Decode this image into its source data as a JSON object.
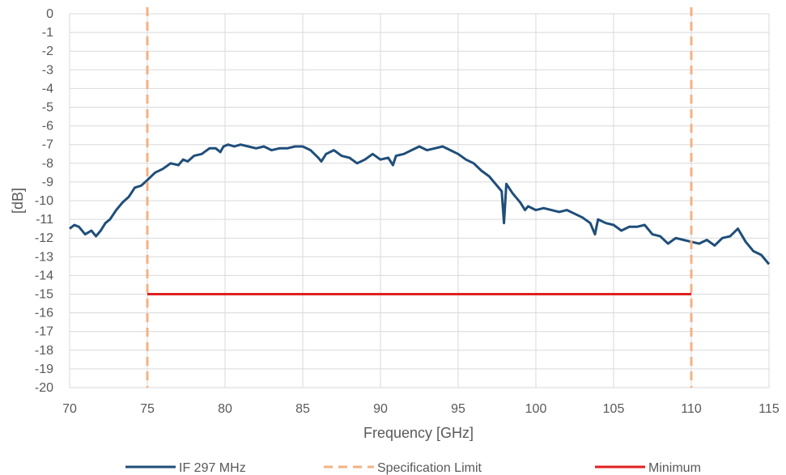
{
  "chart_data": {
    "type": "line",
    "title": "",
    "xlabel": "Frequency [GHz]",
    "ylabel": "[dB]",
    "xlim": [
      70,
      115
    ],
    "ylim": [
      -20,
      0
    ],
    "x_ticks": [
      "70",
      "75",
      "80",
      "85",
      "90",
      "95",
      "100",
      "105",
      "110",
      "115"
    ],
    "y_ticks": [
      "0",
      "-1",
      "-2",
      "-3",
      "-4",
      "-5",
      "-6",
      "-7",
      "-8",
      "-9",
      "-10",
      "-11",
      "-12",
      "-13",
      "-14",
      "-15",
      "-16",
      "-17",
      "-18",
      "-19",
      "-20"
    ],
    "grid": true,
    "legend_position": "bottom",
    "series": [
      {
        "name": "IF 297 MHz",
        "style": "solid",
        "color": "#1f4e79",
        "x": [
          70,
          70.3,
          70.6,
          71,
          71.4,
          71.7,
          72,
          72.3,
          72.6,
          73,
          73.4,
          73.8,
          74.2,
          74.6,
          75,
          75.5,
          76,
          76.5,
          77,
          77.3,
          77.6,
          78,
          78.5,
          79,
          79.4,
          79.7,
          79.9,
          80.2,
          80.6,
          81,
          81.5,
          82,
          82.5,
          83,
          83.5,
          84,
          84.5,
          85,
          85.5,
          86,
          86.2,
          86.5,
          87,
          87.5,
          88,
          88.5,
          89,
          89.5,
          90,
          90.5,
          90.8,
          91,
          91.5,
          92,
          92.5,
          93,
          93.5,
          94,
          94.5,
          95,
          95.5,
          96,
          96.5,
          97,
          97.5,
          97.8,
          97.95,
          98.1,
          98.5,
          99,
          99.3,
          99.5,
          100,
          100.5,
          101,
          101.5,
          102,
          102.5,
          103,
          103.5,
          103.8,
          104,
          104.5,
          105,
          105.5,
          106,
          106.5,
          107,
          107.5,
          108,
          108.5,
          109,
          109.5,
          110,
          110.5,
          111,
          111.5,
          112,
          112.5,
          113,
          113.5,
          114,
          114.5,
          115
        ],
        "y": [
          -11.5,
          -11.3,
          -11.4,
          -11.8,
          -11.6,
          -11.9,
          -11.6,
          -11.2,
          -11.0,
          -10.5,
          -10.1,
          -9.8,
          -9.3,
          -9.2,
          -8.9,
          -8.5,
          -8.3,
          -8.0,
          -8.1,
          -7.8,
          -7.9,
          -7.6,
          -7.5,
          -7.2,
          -7.2,
          -7.4,
          -7.1,
          -7.0,
          -7.1,
          -7.0,
          -7.1,
          -7.2,
          -7.1,
          -7.3,
          -7.2,
          -7.2,
          -7.1,
          -7.1,
          -7.3,
          -7.7,
          -7.9,
          -7.5,
          -7.3,
          -7.6,
          -7.7,
          -8.0,
          -7.8,
          -7.5,
          -7.8,
          -7.7,
          -8.1,
          -7.6,
          -7.5,
          -7.3,
          -7.1,
          -7.3,
          -7.2,
          -7.1,
          -7.3,
          -7.5,
          -7.8,
          -8.0,
          -8.4,
          -8.7,
          -9.2,
          -9.5,
          -11.2,
          -9.1,
          -9.6,
          -10.1,
          -10.5,
          -10.3,
          -10.5,
          -10.4,
          -10.5,
          -10.6,
          -10.5,
          -10.7,
          -10.9,
          -11.2,
          -11.8,
          -11.0,
          -11.2,
          -11.3,
          -11.6,
          -11.4,
          -11.4,
          -11.3,
          -11.8,
          -11.9,
          -12.3,
          -12.0,
          -12.1,
          -12.2,
          -12.3,
          -12.1,
          -12.4,
          -12.0,
          -11.9,
          -11.5,
          -12.2,
          -12.7,
          -12.9,
          -13.4
        ]
      },
      {
        "name": "Specification Limit",
        "style": "dashed",
        "color": "#f4b183",
        "vertical_lines_x": [
          75,
          110
        ]
      },
      {
        "name": "Minimum",
        "style": "solid",
        "color": "#e02020",
        "x": [
          75,
          110
        ],
        "y": [
          -15,
          -15
        ]
      }
    ]
  }
}
